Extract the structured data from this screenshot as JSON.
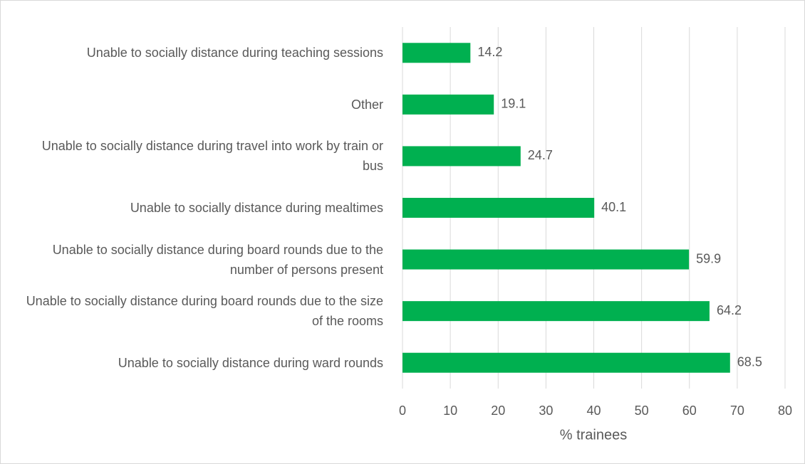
{
  "chart_data": {
    "type": "bar",
    "orientation": "horizontal",
    "x_label": "% trainees",
    "categories": [
      "Unable to socially distance during teaching sessions",
      "Other",
      "Unable to socially distance during travel into work by train or bus",
      "Unable to socially distance during mealtimes",
      "Unable to socially distance during board rounds due to the number of persons present",
      "Unable to socially distance during board rounds due to the size of the rooms",
      "Unable to socially distance during ward rounds"
    ],
    "values": [
      14.2,
      19.1,
      24.7,
      40.1,
      59.9,
      64.2,
      68.5
    ],
    "color": "#00b050",
    "xlim": [
      0,
      80
    ],
    "xticks": [
      0,
      10,
      20,
      30,
      40,
      50,
      60,
      70,
      80
    ],
    "grid": true
  }
}
